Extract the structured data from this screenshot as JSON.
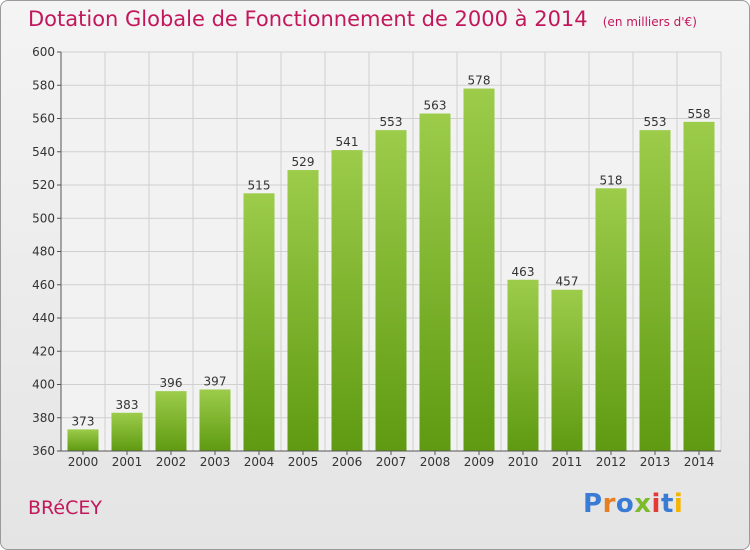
{
  "title": "Dotation Globale de Fonctionnement de 2000 à 2014",
  "unit_label": "(en milliers d'€)",
  "commune": "BRéCEY",
  "logo": {
    "text": "Proxiti",
    "colors": [
      "#3a7bd5",
      "#e67e22",
      "#3a7bd5",
      "#7dbb2c",
      "#e53935",
      "#3a7bd5",
      "#f4b400"
    ]
  },
  "colors": {
    "title": "#c2185b",
    "bar_top": "#9ccc4a",
    "bar_bottom": "#5f9a12",
    "grid": "#d0d0d0",
    "axis": "#555555"
  },
  "chart_data": {
    "type": "bar",
    "title": "Dotation Globale de Fonctionnement de 2000 à 2014",
    "xlabel": "",
    "ylabel": "",
    "categories": [
      "2000",
      "2001",
      "2002",
      "2003",
      "2004",
      "2005",
      "2006",
      "2007",
      "2008",
      "2009",
      "2010",
      "2011",
      "2012",
      "2013",
      "2014"
    ],
    "values": [
      373,
      383,
      396,
      397,
      515,
      529,
      541,
      553,
      563,
      578,
      463,
      457,
      518,
      553,
      558
    ],
    "ylim": [
      360,
      600
    ],
    "yticks": [
      360,
      380,
      400,
      420,
      440,
      460,
      480,
      500,
      520,
      540,
      560,
      580,
      600
    ],
    "grid": true
  }
}
